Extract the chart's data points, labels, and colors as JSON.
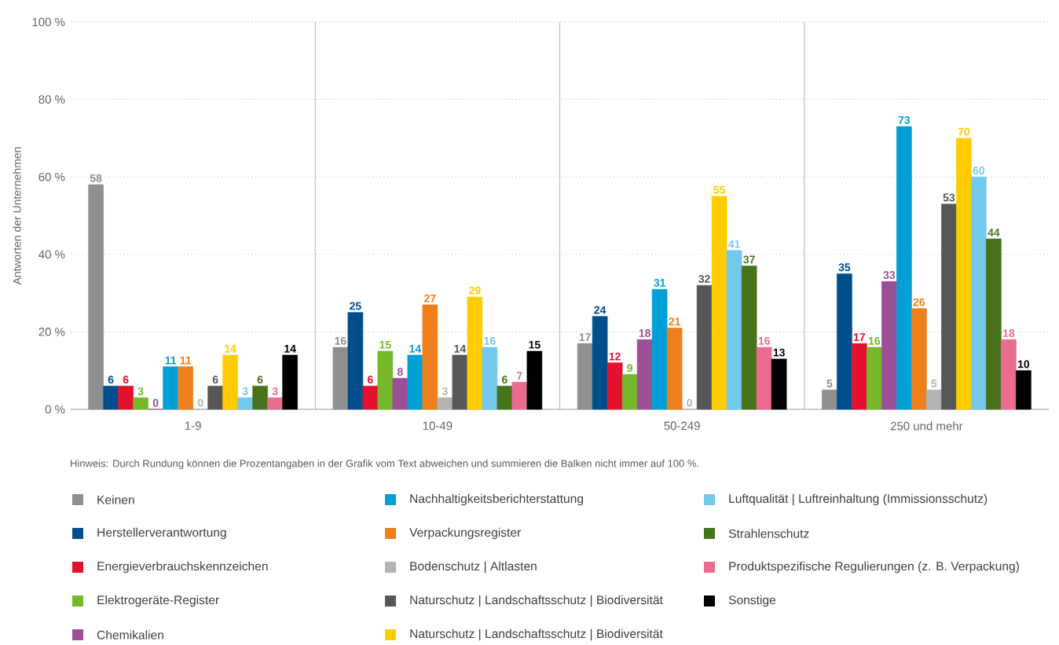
{
  "chart_data": {
    "type": "bar",
    "ylabel": "Antworten der Unternehmen",
    "categories": [
      "1-9",
      "10-49",
      "50-249",
      "250 und mehr"
    ],
    "series": [
      {
        "name": "Keinen",
        "color": "#8f8f8f",
        "values": [
          58,
          16,
          17,
          5
        ]
      },
      {
        "name": "Herstellerverantwortung",
        "color": "#004f8c",
        "values": [
          6,
          25,
          24,
          35
        ]
      },
      {
        "name": "Energieverbrauchskennzeichen",
        "color": "#e3102e",
        "values": [
          6,
          6,
          12,
          17
        ]
      },
      {
        "name": "Elektrogeräte-Register",
        "color": "#76b82a",
        "values": [
          3,
          15,
          9,
          16
        ]
      },
      {
        "name": "Chemikalien",
        "color": "#9b4f96",
        "values": [
          0,
          8,
          18,
          33
        ]
      },
      {
        "name": "Nachhaltigkeitsberichterstattung",
        "color": "#009fd6",
        "values": [
          11,
          14,
          31,
          73
        ]
      },
      {
        "name": "Verpackungsregister",
        "color": "#ee7f1b",
        "values": [
          11,
          27,
          21,
          26
        ]
      },
      {
        "name": "Bodenschutz | Altlasten",
        "color": "#b3b3b3",
        "values": [
          0,
          3,
          0,
          5
        ]
      },
      {
        "name": "Naturschutz | Landschaftsschutz | Biodiversität",
        "color": "#575757",
        "values": [
          6,
          14,
          32,
          53
        ]
      },
      {
        "name": "Naturschutz | Landschaftsschutz | Biodiversität",
        "color": "#ffcc00",
        "values": [
          14,
          29,
          55,
          70
        ]
      },
      {
        "name": "Luftqualität | Luftreinhaltung (Immissionsschutz)",
        "color": "#72c9ec",
        "values": [
          3,
          16,
          41,
          60
        ]
      },
      {
        "name": "Strahlenschutz",
        "color": "#48721b",
        "values": [
          6,
          6,
          37,
          44
        ]
      },
      {
        "name": "Produktspezifische Regulierungen (z. B. Verpackung)",
        "color": "#ea6b8e",
        "values": [
          3,
          7,
          16,
          18
        ]
      },
      {
        "name": "Sonstige",
        "color": "#000000",
        "values": [
          14,
          15,
          13,
          10
        ]
      }
    ],
    "ylim": [
      0,
      100
    ],
    "yticks": [
      {
        "value": 0,
        "label": "0 %"
      },
      {
        "value": 20,
        "label": "20 %"
      },
      {
        "value": 40,
        "label": "40 %"
      },
      {
        "value": 60,
        "label": "60 %"
      },
      {
        "value": 80,
        "label": "80 %"
      },
      {
        "value": 100,
        "label": "100 %"
      }
    ],
    "grid": "y",
    "legend": "bottom",
    "data_labels": true,
    "annotations": [
      "Hinweis: Durch Rundung können die Prozentangaben in der Grafik vom Text abweichen und summieren die Balken nicht immer auf 100 %."
    ]
  }
}
